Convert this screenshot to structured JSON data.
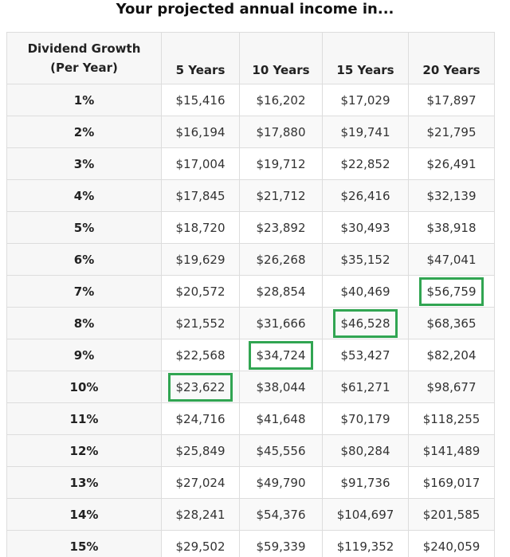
{
  "title": "Your projected annual income in...",
  "colors": {
    "highlight": "#31a552"
  },
  "table": {
    "growth_header_line1": "Dividend Growth",
    "growth_header_line2": "(Per Year)",
    "columns": [
      "5 Years",
      "10 Years",
      "15 Years",
      "20 Years"
    ],
    "rows": [
      {
        "rate": "1%",
        "values": [
          "$15,416",
          "$16,202",
          "$17,029",
          "$17,897"
        ]
      },
      {
        "rate": "2%",
        "values": [
          "$16,194",
          "$17,880",
          "$19,741",
          "$21,795"
        ]
      },
      {
        "rate": "3%",
        "values": [
          "$17,004",
          "$19,712",
          "$22,852",
          "$26,491"
        ]
      },
      {
        "rate": "4%",
        "values": [
          "$17,845",
          "$21,712",
          "$26,416",
          "$32,139"
        ]
      },
      {
        "rate": "5%",
        "values": [
          "$18,720",
          "$23,892",
          "$30,493",
          "$38,918"
        ]
      },
      {
        "rate": "6%",
        "values": [
          "$19,629",
          "$26,268",
          "$35,152",
          "$47,041"
        ]
      },
      {
        "rate": "7%",
        "values": [
          "$20,572",
          "$28,854",
          "$40,469",
          "$56,759"
        ]
      },
      {
        "rate": "8%",
        "values": [
          "$21,552",
          "$31,666",
          "$46,528",
          "$68,365"
        ]
      },
      {
        "rate": "9%",
        "values": [
          "$22,568",
          "$34,724",
          "$53,427",
          "$82,204"
        ]
      },
      {
        "rate": "10%",
        "values": [
          "$23,622",
          "$38,044",
          "$61,271",
          "$98,677"
        ]
      },
      {
        "rate": "11%",
        "values": [
          "$24,716",
          "$41,648",
          "$70,179",
          "$118,255"
        ]
      },
      {
        "rate": "12%",
        "values": [
          "$25,849",
          "$45,556",
          "$80,284",
          "$141,489"
        ]
      },
      {
        "rate": "13%",
        "values": [
          "$27,024",
          "$49,790",
          "$91,736",
          "$169,017"
        ]
      },
      {
        "rate": "14%",
        "values": [
          "$28,241",
          "$54,376",
          "$104,697",
          "$201,585"
        ]
      },
      {
        "rate": "15%",
        "values": [
          "$29,502",
          "$59,339",
          "$119,352",
          "$240,059"
        ]
      }
    ],
    "highlighted_cells": [
      {
        "row": 6,
        "col": 3
      },
      {
        "row": 7,
        "col": 2
      },
      {
        "row": 8,
        "col": 1
      },
      {
        "row": 9,
        "col": 0
      }
    ]
  }
}
